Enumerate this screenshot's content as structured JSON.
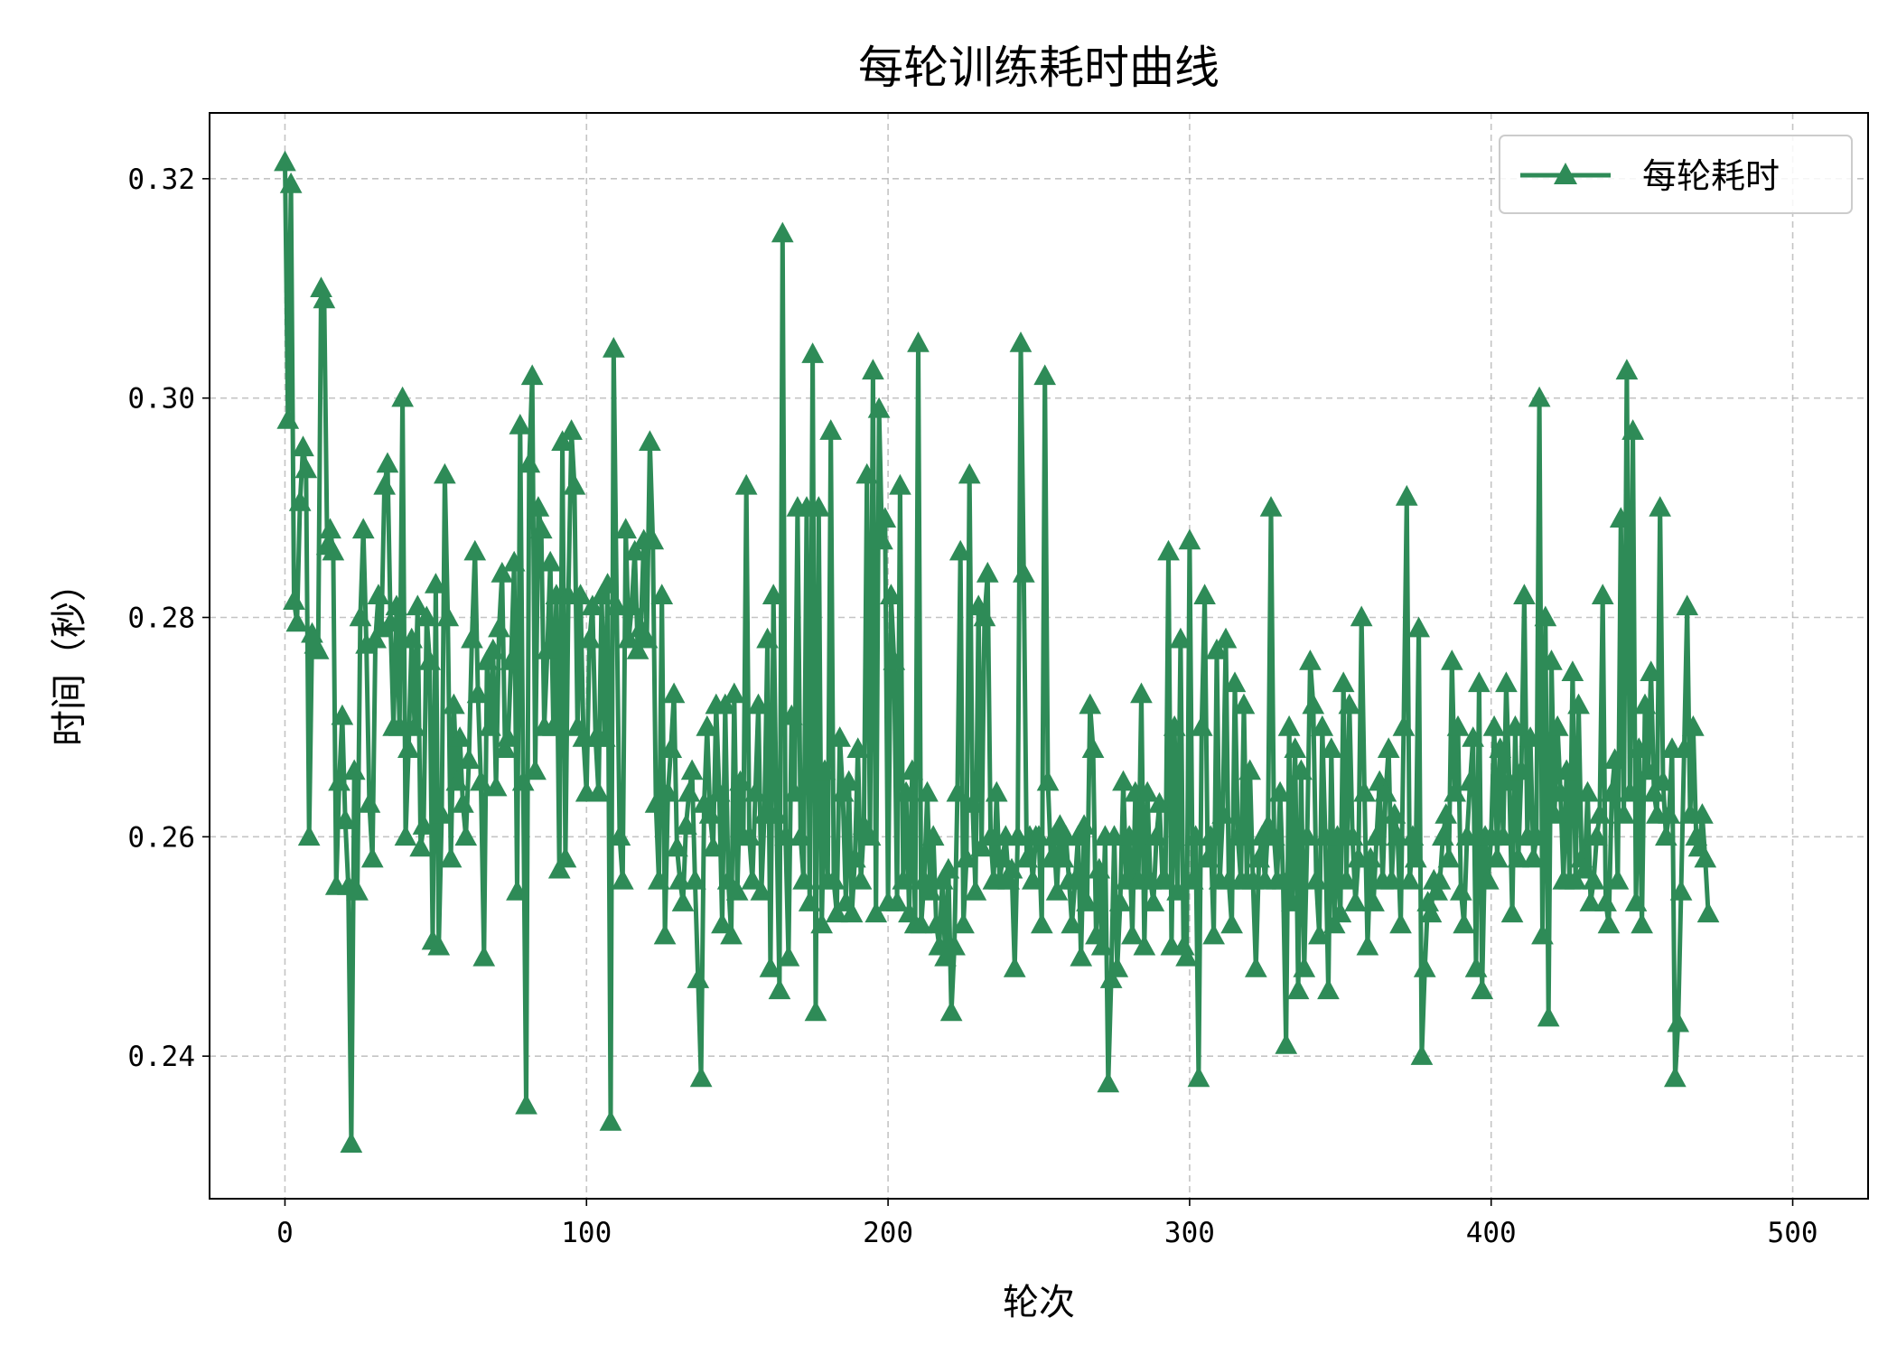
{
  "chart_data": {
    "type": "line",
    "title": "每轮训练耗时曲线",
    "xlabel": "轮次",
    "ylabel": "时间（秒）",
    "xlim": [
      -25,
      525
    ],
    "ylim": [
      0.227,
      0.326
    ],
    "xticks": [
      0,
      100,
      200,
      300,
      400,
      500
    ],
    "xtick_labels": [
      "0",
      "100",
      "200",
      "300",
      "400",
      "500"
    ],
    "yticks": [
      0.24,
      0.26,
      0.28,
      0.3,
      0.32
    ],
    "ytick_labels": [
      "0.24",
      "0.26",
      "0.28",
      "0.30",
      "0.32"
    ],
    "grid": true,
    "legend_position": "top-right",
    "marker": "triangle-up",
    "series": [
      {
        "name": "每轮耗时",
        "color": "#2e8b57",
        "x_start": 0,
        "x_step": 1,
        "values": [
          0.3215,
          0.298,
          0.3195,
          0.2815,
          0.2795,
          0.2905,
          0.2955,
          0.2935,
          0.26,
          0.2785,
          0.2775,
          0.277,
          0.31,
          0.309,
          0.2865,
          0.288,
          0.286,
          0.2555,
          0.265,
          0.271,
          0.2615,
          0.2555,
          0.232,
          0.266,
          0.255,
          0.28,
          0.288,
          0.2775,
          0.263,
          0.258,
          0.278,
          0.282,
          0.279,
          0.292,
          0.294,
          0.2795,
          0.27,
          0.281,
          0.27,
          0.3,
          0.26,
          0.268,
          0.278,
          0.27,
          0.281,
          0.259,
          0.261,
          0.28,
          0.276,
          0.2505,
          0.283,
          0.25,
          0.262,
          0.293,
          0.28,
          0.258,
          0.272,
          0.265,
          0.269,
          0.263,
          0.26,
          0.267,
          0.278,
          0.286,
          0.273,
          0.265,
          0.249,
          0.276,
          0.27,
          0.277,
          0.2645,
          0.279,
          0.284,
          0.268,
          0.269,
          0.276,
          0.285,
          0.255,
          0.2975,
          0.265,
          0.2355,
          0.294,
          0.302,
          0.266,
          0.29,
          0.288,
          0.27,
          0.277,
          0.285,
          0.27,
          0.282,
          0.257,
          0.296,
          0.258,
          0.282,
          0.297,
          0.292,
          0.27,
          0.282,
          0.269,
          0.264,
          0.278,
          0.281,
          0.269,
          0.264,
          0.282,
          0.269,
          0.283,
          0.234,
          0.3045,
          0.281,
          0.26,
          0.256,
          0.288,
          0.278,
          0.281,
          0.286,
          0.277,
          0.279,
          0.287,
          0.278,
          0.296,
          0.287,
          0.263,
          0.256,
          0.282,
          0.251,
          0.264,
          0.268,
          0.273,
          0.259,
          0.256,
          0.254,
          0.261,
          0.264,
          0.266,
          0.256,
          0.247,
          0.238,
          0.263,
          0.27,
          0.262,
          0.259,
          0.272,
          0.264,
          0.252,
          0.272,
          0.256,
          0.251,
          0.273,
          0.255,
          0.265,
          0.26,
          0.292,
          0.26,
          0.256,
          0.264,
          0.272,
          0.255,
          0.262,
          0.278,
          0.248,
          0.282,
          0.262,
          0.246,
          0.315,
          0.26,
          0.249,
          0.271,
          0.264,
          0.29,
          0.26,
          0.256,
          0.29,
          0.254,
          0.304,
          0.244,
          0.29,
          0.252,
          0.266,
          0.256,
          0.297,
          0.256,
          0.253,
          0.269,
          0.264,
          0.254,
          0.265,
          0.253,
          0.258,
          0.268,
          0.256,
          0.261,
          0.293,
          0.26,
          0.3025,
          0.253,
          0.299,
          0.287,
          0.289,
          0.254,
          0.282,
          0.276,
          0.254,
          0.292,
          0.256,
          0.264,
          0.253,
          0.266,
          0.252,
          0.305,
          0.252,
          0.256,
          0.264,
          0.255,
          0.26,
          0.252,
          0.25,
          0.256,
          0.249,
          0.257,
          0.244,
          0.25,
          0.264,
          0.286,
          0.252,
          0.258,
          0.293,
          0.263,
          0.255,
          0.281,
          0.259,
          0.28,
          0.284,
          0.26,
          0.256,
          0.264,
          0.256,
          0.258,
          0.26,
          0.256,
          0.257,
          0.248,
          0.26,
          0.305,
          0.284,
          0.258,
          0.26,
          0.256,
          0.26,
          0.26,
          0.252,
          0.302,
          0.265,
          0.258,
          0.26,
          0.255,
          0.261,
          0.258,
          0.26,
          0.256,
          0.252,
          0.256,
          0.26,
          0.249,
          0.261,
          0.254,
          0.272,
          0.268,
          0.251,
          0.257,
          0.25,
          0.26,
          0.2375,
          0.247,
          0.26,
          0.248,
          0.254,
          0.265,
          0.256,
          0.26,
          0.251,
          0.264,
          0.256,
          0.273,
          0.25,
          0.264,
          0.256,
          0.254,
          0.26,
          0.263,
          0.256,
          0.256,
          0.286,
          0.25,
          0.27,
          0.255,
          0.278,
          0.25,
          0.249,
          0.287,
          0.256,
          0.26,
          0.238,
          0.27,
          0.282,
          0.258,
          0.26,
          0.251,
          0.277,
          0.256,
          0.262,
          0.278,
          0.256,
          0.252,
          0.274,
          0.26,
          0.256,
          0.272,
          0.256,
          0.266,
          0.256,
          0.248,
          0.258,
          0.26,
          0.256,
          0.261,
          0.29,
          0.26,
          0.256,
          0.264,
          0.256,
          0.241,
          0.27,
          0.254,
          0.268,
          0.246,
          0.266,
          0.248,
          0.26,
          0.276,
          0.272,
          0.256,
          0.251,
          0.27,
          0.26,
          0.246,
          0.268,
          0.252,
          0.26,
          0.253,
          0.274,
          0.256,
          0.272,
          0.26,
          0.254,
          0.258,
          0.28,
          0.264,
          0.25,
          0.258,
          0.254,
          0.26,
          0.265,
          0.256,
          0.264,
          0.268,
          0.256,
          0.262,
          0.26,
          0.252,
          0.27,
          0.291,
          0.256,
          0.26,
          0.258,
          0.279,
          0.24,
          0.248,
          0.254,
          0.253,
          0.256,
          0.255,
          0.256,
          0.26,
          0.262,
          0.258,
          0.276,
          0.264,
          0.27,
          0.255,
          0.252,
          0.26,
          0.265,
          0.269,
          0.248,
          0.274,
          0.246,
          0.26,
          0.256,
          0.26,
          0.27,
          0.258,
          0.268,
          0.26,
          0.274,
          0.265,
          0.253,
          0.27,
          0.258,
          0.266,
          0.282,
          0.26,
          0.269,
          0.258,
          0.26,
          0.3,
          0.251,
          0.28,
          0.2435,
          0.276,
          0.262,
          0.27,
          0.264,
          0.256,
          0.266,
          0.256,
          0.275,
          0.256,
          0.272,
          0.258,
          0.257,
          0.264,
          0.254,
          0.256,
          0.26,
          0.262,
          0.282,
          0.254,
          0.252,
          0.264,
          0.267,
          0.256,
          0.289,
          0.262,
          0.3025,
          0.264,
          0.297,
          0.254,
          0.268,
          0.252,
          0.272,
          0.266,
          0.275,
          0.264,
          0.262,
          0.29,
          0.265,
          0.26,
          0.262,
          0.268,
          0.238,
          0.243,
          0.255,
          0.268,
          0.281,
          0.262,
          0.27,
          0.26,
          0.259,
          0.262,
          0.258,
          0.253
        ]
      }
    ]
  }
}
